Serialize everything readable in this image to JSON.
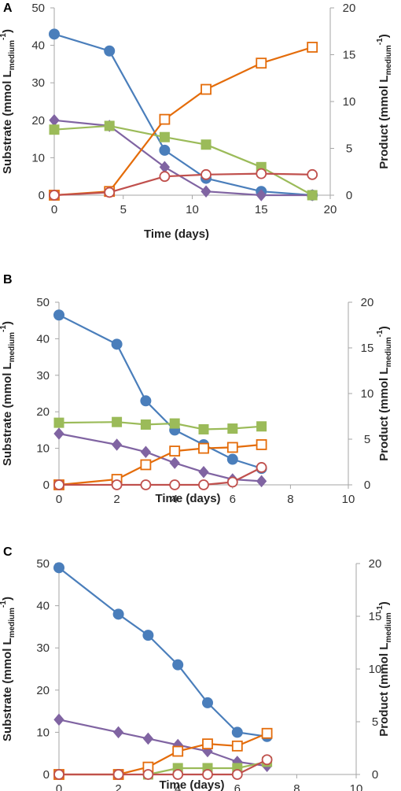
{
  "chart_data": [
    {
      "type": "line",
      "panel_label": "A",
      "xlabel": "Time (days)",
      "ylabel_left": {
        "main": "Substrate  (mmol L",
        "sub": "medium",
        "sup": "-1",
        "close": ")"
      },
      "ylabel_right": {
        "main": "Product  (mmol L",
        "sub": "medium",
        "sup": "-1",
        "close": ")"
      },
      "xlim": [
        0,
        20
      ],
      "xticks": [
        0,
        5,
        10,
        15,
        20
      ],
      "ylim_left": [
        0,
        50
      ],
      "yticks_left": [
        0,
        10,
        20,
        30,
        40,
        50
      ],
      "ylim_right": [
        0,
        20
      ],
      "yticks_right": [
        0,
        5,
        10,
        15,
        20
      ],
      "grid": false,
      "legend": "none",
      "series": [
        {
          "color": "#4a7ebb",
          "marker": "circle-filled",
          "axis": "left",
          "x": [
            0,
            4,
            8,
            11,
            15,
            18.7
          ],
          "y": [
            43,
            38.5,
            12,
            4.5,
            1,
            0
          ]
        },
        {
          "color": "#8064a2",
          "marker": "diamond-filled",
          "axis": "left",
          "x": [
            0,
            4,
            8,
            11,
            15,
            18.7
          ],
          "y": [
            20,
            18.5,
            7.5,
            1,
            0,
            0
          ]
        },
        {
          "color": "#9bbb59",
          "marker": "square-filled",
          "axis": "left",
          "x": [
            0,
            4,
            8,
            11,
            15,
            18.7
          ],
          "y": [
            17.5,
            18.5,
            15.5,
            13.5,
            7.5,
            0
          ]
        },
        {
          "color": "#e46c0a",
          "marker": "square-open",
          "axis": "right",
          "x": [
            0,
            4,
            8,
            11,
            15,
            18.7
          ],
          "y": [
            0,
            0.4,
            8.1,
            11.3,
            14.1,
            15.8
          ]
        },
        {
          "color": "#c0504d",
          "marker": "circle-open",
          "axis": "right",
          "x": [
            0,
            4,
            8,
            11,
            15,
            18.7
          ],
          "y": [
            0,
            0.3,
            2,
            2.2,
            2.3,
            2.2
          ]
        }
      ]
    },
    {
      "type": "line",
      "panel_label": "B",
      "xlabel": "Time (days)",
      "ylabel_left": {
        "main": "Substrate  (mmol L",
        "sub": "medium",
        "sup": "-1",
        "close": ")"
      },
      "ylabel_right": {
        "main": "Product  (mmol L",
        "sub": "medium",
        "sup": "-1",
        "close": ")"
      },
      "xlim": [
        0,
        10
      ],
      "xticks": [
        0,
        2,
        4,
        6,
        8,
        10
      ],
      "ylim_left": [
        0,
        50
      ],
      "yticks_left": [
        0,
        10,
        20,
        30,
        40,
        50
      ],
      "ylim_right": [
        0,
        20
      ],
      "yticks_right": [
        0,
        5,
        10,
        15,
        20
      ],
      "grid": false,
      "legend": "none",
      "series": [
        {
          "color": "#4a7ebb",
          "marker": "circle-filled",
          "axis": "left",
          "x": [
            0,
            2,
            3,
            4,
            5,
            6,
            7
          ],
          "y": [
            46.5,
            38.5,
            23,
            15,
            11,
            7,
            4.5
          ]
        },
        {
          "color": "#8064a2",
          "marker": "diamond-filled",
          "axis": "left",
          "x": [
            0,
            2,
            3,
            4,
            5,
            6,
            7
          ],
          "y": [
            14,
            11,
            9,
            6,
            3.5,
            1.5,
            1
          ]
        },
        {
          "color": "#9bbb59",
          "marker": "square-filled",
          "axis": "left",
          "x": [
            0,
            2,
            3,
            4,
            5,
            6,
            7
          ],
          "y": [
            17,
            17.2,
            16.5,
            16.8,
            15.2,
            15.4,
            16
          ]
        },
        {
          "color": "#e46c0a",
          "marker": "square-open",
          "axis": "right",
          "x": [
            0,
            2,
            3,
            4,
            5,
            6,
            7
          ],
          "y": [
            0,
            0.6,
            2.2,
            3.7,
            4,
            4.1,
            4.4
          ]
        },
        {
          "color": "#c0504d",
          "marker": "circle-open",
          "axis": "right",
          "x": [
            0,
            2,
            3,
            4,
            5,
            6,
            7
          ],
          "y": [
            0,
            0,
            0,
            0,
            0,
            0.3,
            1.9
          ]
        }
      ]
    },
    {
      "type": "line",
      "panel_label": "C",
      "xlabel": "Time (days)",
      "ylabel_left": {
        "main": "Substrate  (mmol L",
        "sub": "medium",
        "sup": "-1",
        "close": ")"
      },
      "ylabel_right": {
        "main": "Product  (mmol L",
        "sub": "medium",
        "sup": "-1",
        "close": ")"
      },
      "xlim": [
        0,
        10
      ],
      "xticks": [
        0,
        2,
        4,
        6,
        8,
        10
      ],
      "ylim_left": [
        0,
        50
      ],
      "yticks_left": [
        0,
        10,
        20,
        30,
        40,
        50
      ],
      "ylim_right": [
        0,
        20
      ],
      "yticks_right": [
        0,
        5,
        10,
        15,
        20
      ],
      "grid": false,
      "legend": "none",
      "series": [
        {
          "color": "#4a7ebb",
          "marker": "circle-filled",
          "axis": "left",
          "x": [
            0,
            2,
            3,
            4,
            5,
            6,
            7
          ],
          "y": [
            49,
            38,
            33,
            26,
            17,
            10,
            9
          ]
        },
        {
          "color": "#8064a2",
          "marker": "diamond-filled",
          "axis": "left",
          "x": [
            0,
            2,
            3,
            4,
            5,
            6,
            7
          ],
          "y": [
            13,
            10,
            8.5,
            7,
            5.5,
            3,
            2
          ]
        },
        {
          "color": "#9bbb59",
          "marker": "square-filled",
          "axis": "left",
          "x": [
            3,
            4,
            5,
            6,
            7
          ],
          "y": [
            0,
            1.5,
            1.5,
            1.5,
            3
          ]
        },
        {
          "color": "#e46c0a",
          "marker": "square-open",
          "axis": "right",
          "x": [
            0,
            2,
            3,
            4,
            5,
            6,
            7
          ],
          "y": [
            0,
            0,
            0.7,
            2.2,
            2.9,
            2.7,
            3.9
          ]
        },
        {
          "color": "#c0504d",
          "marker": "circle-open",
          "axis": "right",
          "x": [
            0,
            2,
            3,
            4,
            5,
            6,
            7
          ],
          "y": [
            0,
            0,
            0,
            0,
            0,
            0,
            1.4
          ]
        }
      ]
    }
  ]
}
